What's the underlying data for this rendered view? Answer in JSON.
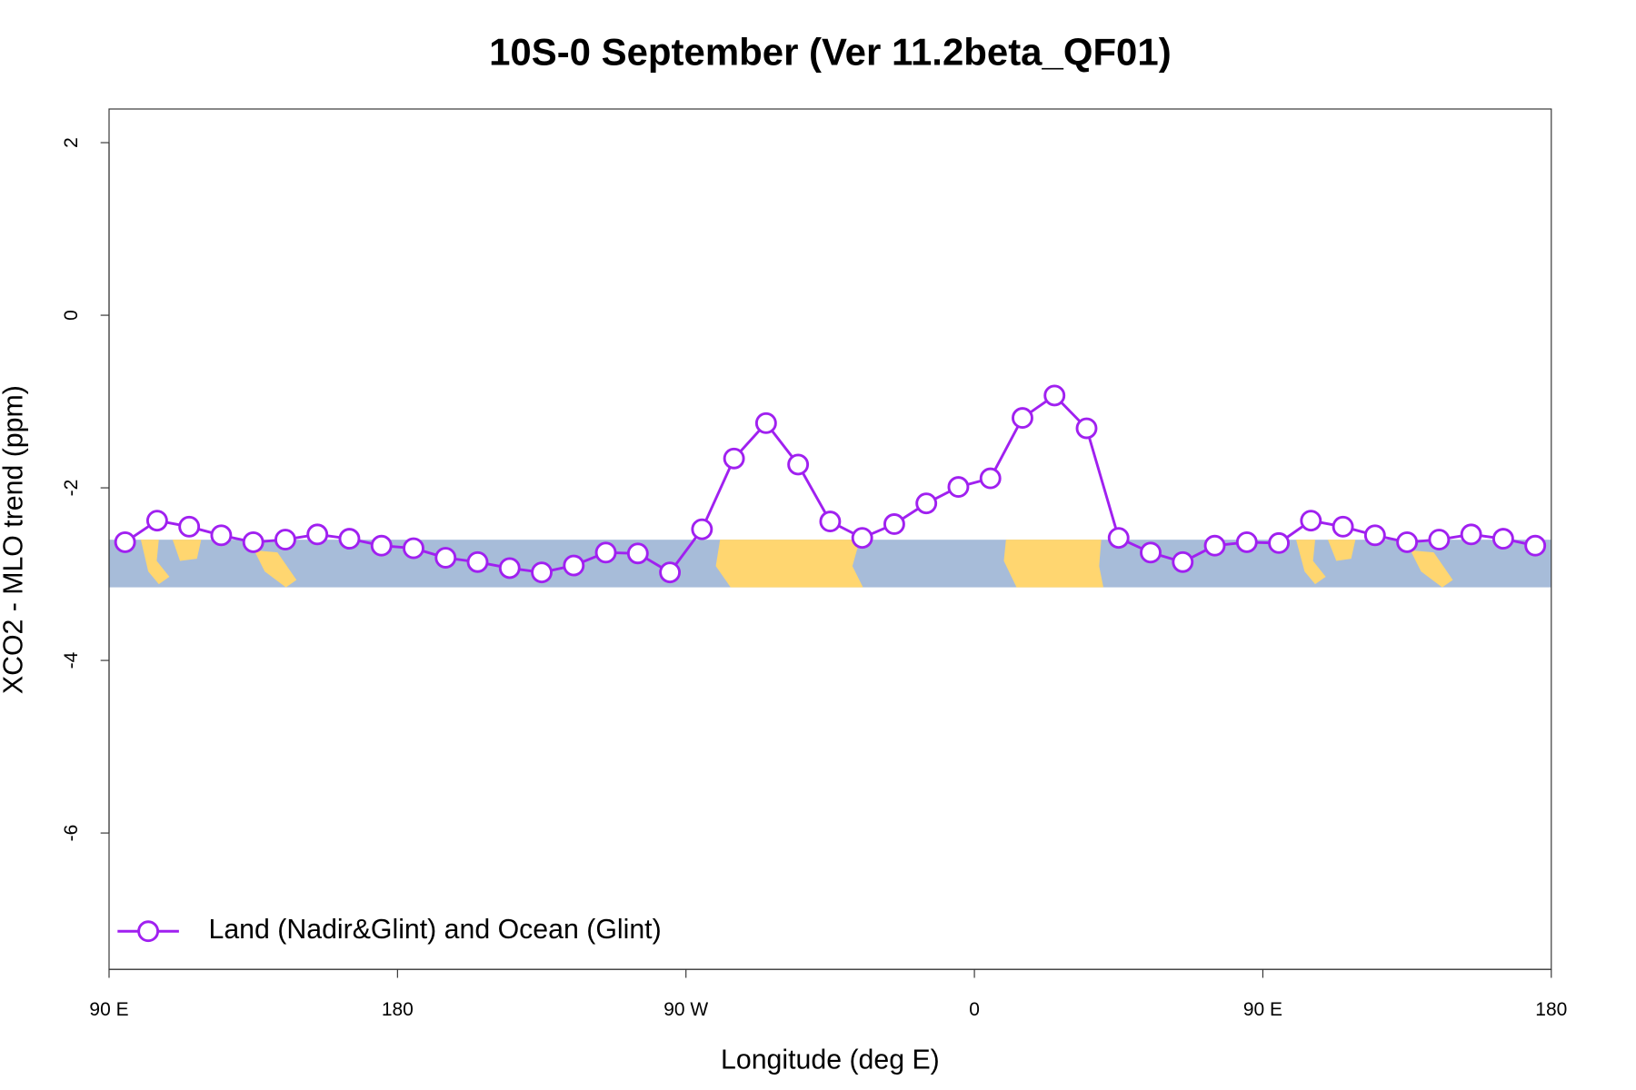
{
  "chart_data": {
    "type": "line",
    "title": "10S-0 September (Ver 11.2beta_QF01)",
    "x_label": "Longitude (deg E)",
    "y_label": "XCO2 - MLO trend (ppm)",
    "x": [
      95,
      105,
      115,
      125,
      135,
      145,
      155,
      165,
      175,
      185,
      195,
      205,
      215,
      225,
      235,
      245,
      255,
      265,
      275,
      285,
      295,
      305,
      315,
      325,
      335,
      345,
      355,
      365,
      375,
      385,
      395,
      405,
      415,
      425,
      435,
      445,
      455,
      465,
      475,
      485,
      495,
      505,
      515,
      525,
      535
    ],
    "series": [
      {
        "name": "Land (Nadir&Glint) and Ocean (Glint)",
        "color": "#a020f0",
        "values": [
          -2.63,
          -2.38,
          -2.45,
          -2.55,
          -2.63,
          -2.6,
          -2.54,
          -2.59,
          -2.67,
          -2.7,
          -2.81,
          -2.86,
          -2.93,
          -2.98,
          -2.9,
          -2.75,
          -2.76,
          -2.98,
          -2.48,
          -1.66,
          -1.25,
          -1.73,
          -2.39,
          -2.58,
          -2.42,
          -2.18,
          -1.99,
          -1.89,
          -1.19,
          -0.93,
          -1.31,
          -2.58,
          -2.75,
          -2.86,
          -2.67,
          -2.63,
          -2.64,
          -2.38,
          -2.45,
          -2.55,
          -2.63,
          -2.6,
          -2.54,
          -2.59,
          -2.67
        ]
      }
    ],
    "xlim": [
      90,
      540
    ],
    "xticks": [
      {
        "value": 90,
        "label": "90 E"
      },
      180,
      {
        "value": 270,
        "label": "90 W"
      },
      {
        "value": 360,
        "label": "0"
      },
      {
        "value": 450,
        "label": "90 E"
      },
      {
        "value": 540,
        "label": "180"
      }
    ],
    "ylim": [
      -7.58,
      2.39
    ],
    "yticks": [
      -6,
      -4,
      -2,
      0,
      2
    ],
    "legend": "bottom-left"
  }
}
